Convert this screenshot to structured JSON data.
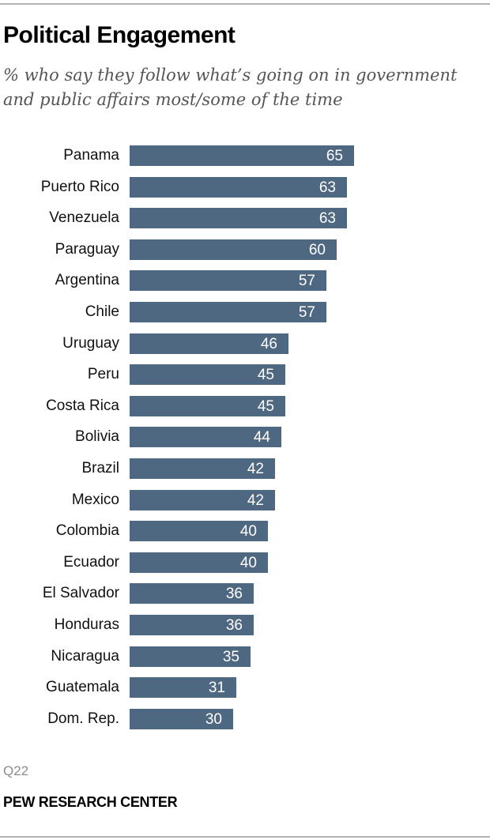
{
  "header": {
    "title": "Political Engagement",
    "subtitle": "% who say they follow what’s going on in government and public affairs most/some of the time"
  },
  "footer": {
    "note": "Q22",
    "source": "PEW RESEARCH CENTER"
  },
  "colors": {
    "bar": "#4f6882",
    "bar_label": "#ffffff"
  },
  "chart_data": {
    "type": "bar",
    "orientation": "horizontal",
    "title": "Political Engagement",
    "subtitle": "% who say they follow what’s going on in government and public affairs most/some of the time",
    "xlabel": "",
    "ylabel": "",
    "grid": false,
    "legend": null,
    "xlim": [
      0,
      65
    ],
    "categories": [
      "Panama",
      "Puerto Rico",
      "Venezuela",
      "Paraguay",
      "Argentina",
      "Chile",
      "Uruguay",
      "Peru",
      "Costa Rica",
      "Bolivia",
      "Brazil",
      "Mexico",
      "Colombia",
      "Ecuador",
      "El Salvador",
      "Honduras",
      "Nicaragua",
      "Guatemala",
      "Dom. Rep."
    ],
    "values": [
      65,
      63,
      63,
      60,
      57,
      57,
      46,
      45,
      45,
      44,
      42,
      42,
      40,
      40,
      36,
      36,
      35,
      31,
      30
    ],
    "note": "Q22",
    "source": "PEW RESEARCH CENTER"
  }
}
